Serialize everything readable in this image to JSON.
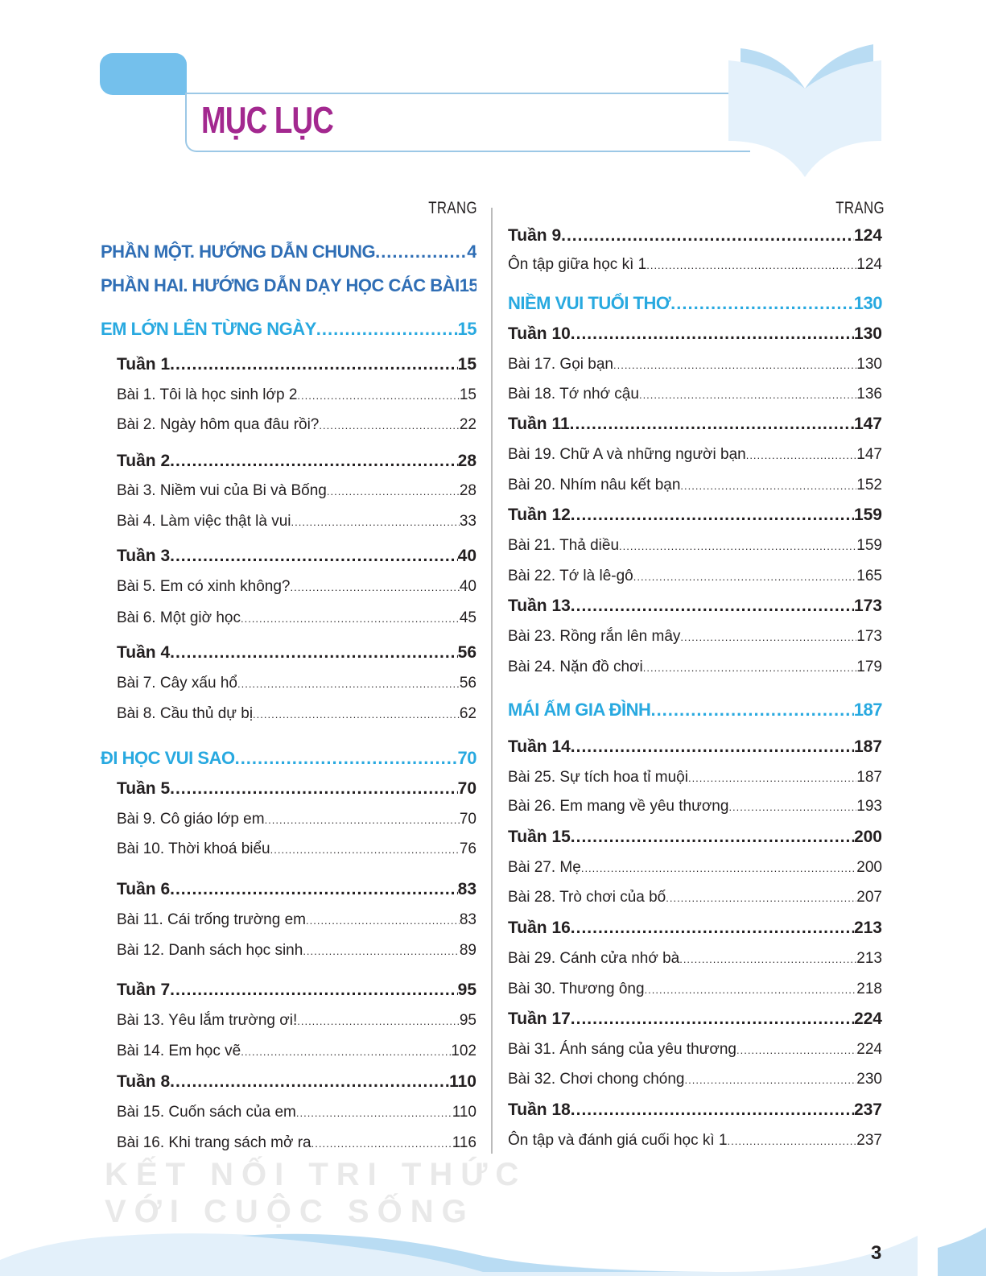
{
  "title": "MỤC LỤC",
  "page_column_label": "TRANG",
  "watermark": [
    "KẾT NỐI TRI THỨC",
    "VỚI CUỘC SỐNG"
  ],
  "page_number": "3",
  "colors": {
    "title": "#a3288f",
    "part": "#2f6eb5",
    "topic": "#28a9e0",
    "accent": "#74c0ec"
  },
  "left": [
    {
      "type": "part",
      "title": "PHẦN MỘT. HƯỚNG DẪN CHUNG",
      "page": "4"
    },
    {
      "type": "part",
      "title": "PHẦN HAI. HƯỚNG DẪN DẠY HỌC CÁC BÀI",
      "page": "15"
    },
    {
      "type": "topic",
      "title": "EM LỚN LÊN TỪNG NGÀY",
      "page": "15"
    },
    {
      "type": "week",
      "title": "Tuần 1",
      "page": "15"
    },
    {
      "type": "lesson",
      "title": "Bài 1. Tôi là học sinh lớp 2",
      "page": "15"
    },
    {
      "type": "lesson",
      "title": "Bài 2. Ngày hôm qua đâu rồi?",
      "page": "22"
    },
    {
      "type": "week",
      "title": "Tuần 2",
      "page": "28"
    },
    {
      "type": "lesson",
      "title": "Bài 3. Niềm vui của Bi và Bống",
      "page": "28"
    },
    {
      "type": "lesson",
      "title": "Bài 4. Làm việc thật là vui",
      "page": "33"
    },
    {
      "type": "week",
      "title": "Tuần 3",
      "page": "40"
    },
    {
      "type": "lesson",
      "title": "Bài 5. Em có xinh không?",
      "page": "40"
    },
    {
      "type": "lesson",
      "title": "Bài 6.  Một giờ học",
      "page": "45"
    },
    {
      "type": "week",
      "title": "Tuần 4",
      "page": "56"
    },
    {
      "type": "lesson",
      "title": "Bài 7. Cây xấu hổ",
      "page": "56"
    },
    {
      "type": "lesson",
      "title": "Bài 8. Cầu thủ dự bị",
      "page": "62"
    },
    {
      "type": "topic",
      "title": "ĐI HỌC VUI SAO",
      "page": "70"
    },
    {
      "type": "week",
      "title": "Tuần 5",
      "page": "70"
    },
    {
      "type": "lesson",
      "title": "Bài 9. Cô giáo lớp em",
      "page": "70"
    },
    {
      "type": "lesson",
      "title": "Bài 10. Thời khoá biểu",
      "page": "76"
    },
    {
      "type": "week",
      "title": "Tuần 6",
      "page": "83"
    },
    {
      "type": "lesson",
      "title": "Bài 11. Cái trống trường em",
      "page": "83"
    },
    {
      "type": "lesson",
      "title": "Bài 12. Danh sách học sinh",
      "page": "89"
    },
    {
      "type": "week",
      "title": "Tuần 7",
      "page": "95"
    },
    {
      "type": "lesson",
      "title": "Bài 13. Yêu lắm trường ơi!",
      "page": "95"
    },
    {
      "type": "lesson",
      "title": "Bài 14. Em học vẽ",
      "page": "102"
    },
    {
      "type": "week",
      "title": "Tuần 8",
      "page": "110"
    },
    {
      "type": "lesson",
      "title": "Bài 15. Cuốn sách của em",
      "page": "110"
    },
    {
      "type": "lesson",
      "title": "Bài 16. Khi trang sách mở ra",
      "page": "116"
    }
  ],
  "right": [
    {
      "type": "week",
      "title": "Tuần 9",
      "page": "124"
    },
    {
      "type": "lesson",
      "title": "Ôn tập giữa học kì 1",
      "page": "124"
    },
    {
      "type": "topic",
      "title": "NIỀM VUI TUỔI THƠ",
      "page": "130"
    },
    {
      "type": "week",
      "title": "Tuần 10",
      "page": "130"
    },
    {
      "type": "lesson",
      "title": "Bài 17. Gọi bạn",
      "page": "130"
    },
    {
      "type": "lesson",
      "title": "Bài 18. Tớ nhớ cậu",
      "page": "136"
    },
    {
      "type": "week",
      "title": "Tuần 11",
      "page": "147"
    },
    {
      "type": "lesson",
      "title": "Bài 19. Chữ A và những người bạn",
      "page": "147"
    },
    {
      "type": "lesson",
      "title": "Bài 20. Nhím nâu kết bạn",
      "page": "152"
    },
    {
      "type": "week",
      "title": "Tuần 12",
      "page": "159"
    },
    {
      "type": "lesson",
      "title": "Bài 21. Thả diều",
      "page": "159"
    },
    {
      "type": "lesson",
      "title": "Bài 22. Tớ là lê-gô",
      "page": "165"
    },
    {
      "type": "week",
      "title": "Tuần 13",
      "page": "173"
    },
    {
      "type": "lesson",
      "title": "Bài 23. Rồng rắn lên mây",
      "page": "173"
    },
    {
      "type": "lesson",
      "title": "Bài 24. Nặn đồ chơi",
      "page": "179"
    },
    {
      "type": "topic",
      "title": "MÁI ẤM GIA ĐÌNH",
      "page": "187"
    },
    {
      "type": "week",
      "title": "Tuần 14",
      "page": "187"
    },
    {
      "type": "lesson",
      "title": "Bài 25. Sự tích hoa tỉ muội",
      "page": "187"
    },
    {
      "type": "lesson",
      "title": "Bài 26. Em mang về yêu thương",
      "page": "193"
    },
    {
      "type": "week",
      "title": "Tuần 15",
      "page": "200"
    },
    {
      "type": "lesson",
      "title": "Bài 27. Mẹ",
      "page": "200"
    },
    {
      "type": "lesson",
      "title": "Bài 28. Trò chơi của bố",
      "page": "207"
    },
    {
      "type": "week",
      "title": "Tuần 16",
      "page": "213"
    },
    {
      "type": "lesson",
      "title": "Bài 29. Cánh cửa nhớ bà",
      "page": "213"
    },
    {
      "type": "lesson",
      "title": "Bài 30. Thương ông",
      "page": "218"
    },
    {
      "type": "week",
      "title": "Tuần 17",
      "page": "224"
    },
    {
      "type": "lesson",
      "title": "Bài 31. Ánh sáng của yêu thương",
      "page": "224"
    },
    {
      "type": "lesson",
      "title": "Bài 32. Chơi chong chóng",
      "page": "230"
    },
    {
      "type": "week",
      "title": "Tuần 18",
      "page": "237"
    },
    {
      "type": "lesson",
      "title": "Ôn tập và đánh giá cuối học kì 1",
      "page": "237"
    }
  ]
}
